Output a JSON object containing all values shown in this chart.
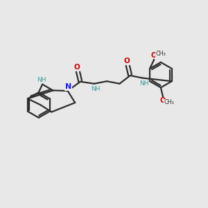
{
  "bg_color": "#e8e8e8",
  "bond_color": "#2d2d2d",
  "N_color": "#1a1aff",
  "O_color": "#cc0000",
  "NH_color": "#3d9999",
  "line_width": 1.6,
  "fig_size": [
    3.0,
    3.0
  ],
  "dpi": 100,
  "xlim": [
    0,
    10
  ],
  "ylim": [
    2,
    8
  ]
}
